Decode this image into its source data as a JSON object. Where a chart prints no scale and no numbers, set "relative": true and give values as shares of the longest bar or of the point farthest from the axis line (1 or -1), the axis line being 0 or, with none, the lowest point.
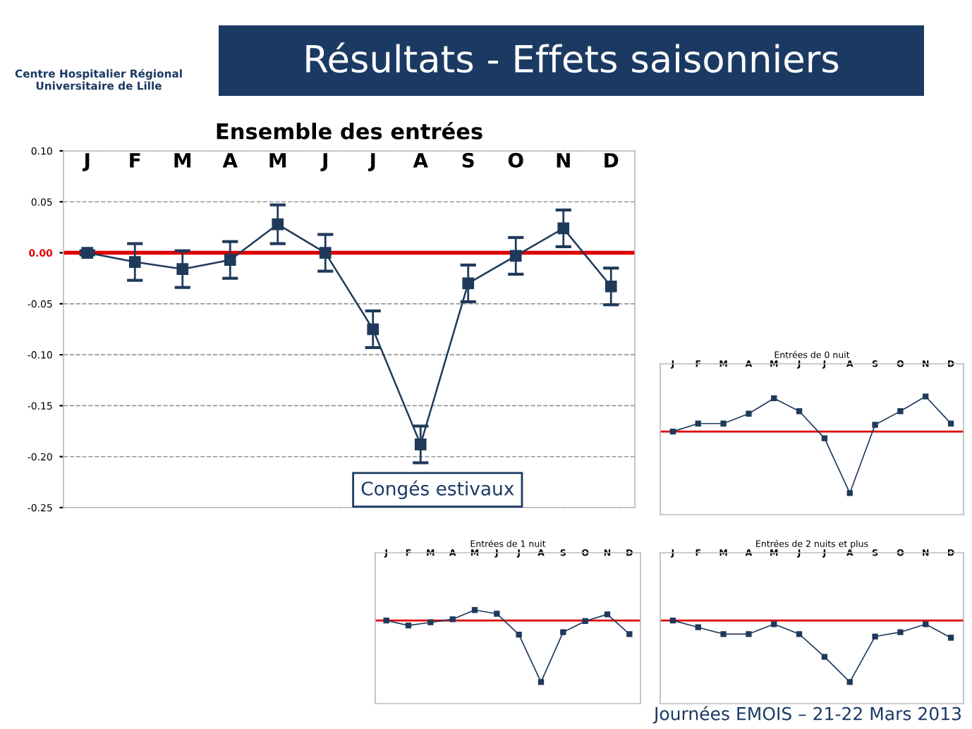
{
  "chart_data": [
    {
      "type": "other",
      "title": "Résultats - Effets saisonniers",
      "annotations": [
        "Centre Hospitalier Régional Universitaire de Lille",
        "Journées EMOIS – 21-22 Mars 2013"
      ]
    },
    {
      "type": "line",
      "title": "Ensemble des entrées",
      "categories": [
        "J",
        "F",
        "M",
        "A",
        "M",
        "J",
        "J",
        "A",
        "S",
        "O",
        "N",
        "D"
      ],
      "series": [
        {
          "color": "#1f3a5a",
          "values": [
            0.0,
            -0.009,
            -0.016,
            -0.007,
            0.028,
            0.0,
            -0.075,
            -0.188,
            -0.03,
            -0.003,
            0.024,
            -0.033
          ],
          "errors": [
            0.002,
            0.018,
            0.018,
            0.018,
            0.019,
            0.018,
            0.018,
            0.018,
            0.018,
            0.018,
            0.018,
            0.018
          ]
        }
      ],
      "ylim": [
        -0.25,
        0.1
      ],
      "yticks": [
        {
          "value": -0.25,
          "label": "-0.25"
        },
        {
          "value": -0.2,
          "label": "-0.20"
        },
        {
          "value": -0.15,
          "label": "-0.15"
        },
        {
          "value": -0.1,
          "label": "-0.10"
        },
        {
          "value": -0.05,
          "label": "-0.05"
        },
        {
          "value": 0,
          "label": "0.00"
        },
        {
          "value": 0.05,
          "label": "0.05"
        },
        {
          "value": 0.1,
          "label": "0.10"
        }
      ],
      "grid": "y",
      "marker": "square",
      "line_style": "solid",
      "ref_lines": [
        {
          "axis": "y",
          "value": 0,
          "color": "#e00000"
        }
      ],
      "annotations": [
        "Congés estivaux"
      ]
    },
    {
      "type": "line",
      "title": "Entrées de 0 nuit",
      "relative": true,
      "tick_labels": "x",
      "categories": [
        "J",
        "F",
        "M",
        "A",
        "M",
        "J",
        "J",
        "A",
        "S",
        "O",
        "N",
        "D"
      ],
      "series": [
        {
          "color": "#1f3a5a",
          "values": [
            0,
            0.13,
            0.13,
            0.29,
            0.54,
            0.33,
            -0.11,
            -1,
            0.11,
            0.33,
            0.57,
            0.13
          ]
        }
      ],
      "marker": "square",
      "line_style": "solid",
      "ref_lines": [
        {
          "axis": "y",
          "value": 0,
          "color": "#e00000"
        }
      ]
    },
    {
      "type": "line",
      "title": "Entrées de 1 nuit",
      "relative": true,
      "tick_labels": "x",
      "categories": [
        "J",
        "F",
        "M",
        "A",
        "M",
        "J",
        "J",
        "A",
        "S",
        "O",
        "N",
        "D"
      ],
      "series": [
        {
          "color": "#1f3a5a",
          "values": [
            0,
            -0.08,
            -0.03,
            0.02,
            0.17,
            0.11,
            -0.23,
            -1,
            -0.19,
            -0.01,
            0.1,
            -0.22
          ]
        }
      ],
      "marker": "square",
      "line_style": "solid",
      "ref_lines": [
        {
          "axis": "y",
          "value": 0,
          "color": "#e00000"
        }
      ]
    },
    {
      "type": "line",
      "title": "Entrées de 2 nuits et plus",
      "relative": true,
      "tick_labels": "x",
      "categories": [
        "J",
        "F",
        "M",
        "A",
        "M",
        "J",
        "J",
        "A",
        "S",
        "O",
        "N",
        "D"
      ],
      "series": [
        {
          "color": "#1f3a5a",
          "values": [
            0,
            -0.11,
            -0.22,
            -0.22,
            -0.06,
            -0.22,
            -0.59,
            -1,
            -0.26,
            -0.19,
            -0.06,
            -0.28
          ]
        }
      ],
      "marker": "square",
      "line_style": "solid",
      "ref_lines": [
        {
          "axis": "y",
          "value": 0,
          "color": "#e00000"
        }
      ]
    }
  ]
}
